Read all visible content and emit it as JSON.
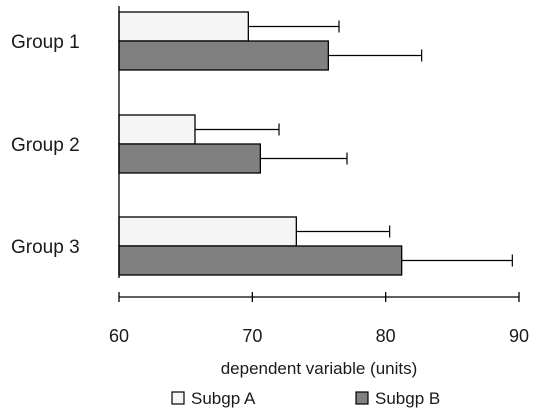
{
  "chart_data": {
    "type": "bar",
    "orientation": "horizontal",
    "categories": [
      "Group 1",
      "Group 2",
      "Group 3"
    ],
    "series": [
      {
        "name": "Subgp A",
        "values": [
          69.7,
          65.7,
          73.3
        ],
        "errors": [
          6.8,
          6.3,
          7.0
        ],
        "color": "#f5f5f5"
      },
      {
        "name": "Subgp B",
        "values": [
          75.7,
          70.6,
          81.2
        ],
        "errors": [
          7.0,
          6.5,
          8.3
        ],
        "color": "#808080"
      }
    ],
    "xlabel": "dependent variable (units)",
    "xlim": [
      60,
      90
    ],
    "xticks": [
      60,
      70,
      80,
      90
    ],
    "grid": false,
    "legend_position": "bottom",
    "error_bars": "positive"
  }
}
